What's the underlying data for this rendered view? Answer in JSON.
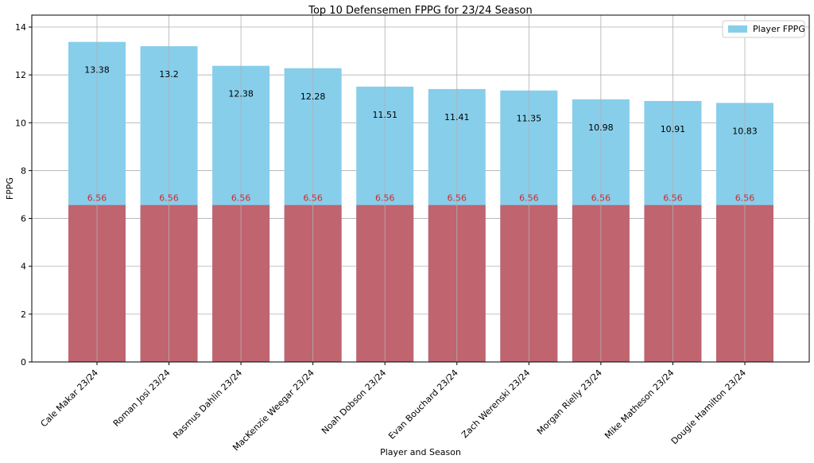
{
  "chart_data": {
    "type": "bar",
    "title": "Top 10 Defensemen FPPG for 23/24 Season",
    "xlabel": "Player and Season",
    "ylabel": "FPPG",
    "ylim": [
      0,
      14.5
    ],
    "yticks": [
      0,
      2,
      4,
      6,
      8,
      10,
      12,
      14
    ],
    "grid": true,
    "legend": {
      "placement": "top-right",
      "entries": [
        "Player FPPG"
      ]
    },
    "categories": [
      "Cale Makar 23/24",
      "Roman Josi 23/24",
      "Rasmus Dahlin 23/24",
      "MacKenzie Weegar 23/24",
      "Noah Dobson 23/24",
      "Evan Bouchard 23/24",
      "Zach Werenski 23/24",
      "Morgan Rielly 23/24",
      "Mike Matheson 23/24",
      "Dougie Hamilton 23/24"
    ],
    "series": [
      {
        "name": "Player FPPG",
        "color": "#87ceeb",
        "values": [
          13.38,
          13.2,
          12.38,
          12.28,
          11.51,
          11.41,
          11.35,
          10.98,
          10.91,
          10.83
        ],
        "labels": [
          "13.38",
          "13.2",
          "12.38",
          "12.28",
          "11.51",
          "11.41",
          "11.35",
          "10.98",
          "10.91",
          "10.83"
        ]
      },
      {
        "color": "#c06470",
        "label_color": "#d62728",
        "values": [
          6.56,
          6.56,
          6.56,
          6.56,
          6.56,
          6.56,
          6.56,
          6.56,
          6.56,
          6.56
        ],
        "labels": [
          "6.56",
          "6.56",
          "6.56",
          "6.56",
          "6.56",
          "6.56",
          "6.56",
          "6.56",
          "6.56",
          "6.56"
        ]
      }
    ]
  }
}
